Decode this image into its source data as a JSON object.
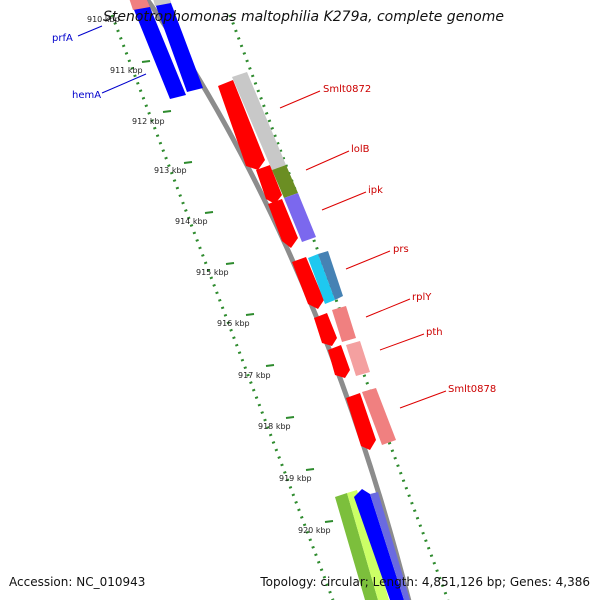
{
  "title": "Stenotrophomonas maltophilia K279a, complete genome",
  "accession_label": "Accession: NC_010943",
  "summary_label": "Topology: circular; Length: 4,851,126 bp; Genes: 4,386",
  "scale_ticks": [
    "910 kbp",
    "911 kbp",
    "912 kbp",
    "913 kbp",
    "914 kbp",
    "915 kbp",
    "916 kbp",
    "917 kbp",
    "918 kbp",
    "919 kbp",
    "920 kbp"
  ],
  "gene_labels": [
    {
      "name": "prfA",
      "strand": "reverse",
      "color": "#0000cc"
    },
    {
      "name": "hemA",
      "strand": "reverse",
      "color": "#0000cc"
    },
    {
      "name": "Smlt0872",
      "strand": "forward",
      "color": "#cc0000"
    },
    {
      "name": "lolB",
      "strand": "forward",
      "color": "#cc0000"
    },
    {
      "name": "ipk",
      "strand": "forward",
      "color": "#cc0000"
    },
    {
      "name": "prs",
      "strand": "forward",
      "color": "#cc0000"
    },
    {
      "name": "rplY",
      "strand": "forward",
      "color": "#cc0000"
    },
    {
      "name": "pth",
      "strand": "forward",
      "color": "#cc0000"
    },
    {
      "name": "Smlt0878",
      "strand": "forward",
      "color": "#cc0000"
    }
  ],
  "colors": {
    "backbone": "#8c8c8c",
    "forward_cds": "#ff0000",
    "reverse_cds": "#0000ff",
    "tick_dots": "#2e8b2e",
    "cog_light_gray": "#c8c8c8",
    "cog_olive": "#6b8e23",
    "cog_purple": "#7b68ee",
    "cog_cyan": "#1ec8f0",
    "cog_steelblue": "#4682b4",
    "cog_salmon": "#f08080",
    "cog_green": "#7cbf3c",
    "cog_lime": "#ccff66",
    "cog_pink": "#f4a0a0"
  }
}
